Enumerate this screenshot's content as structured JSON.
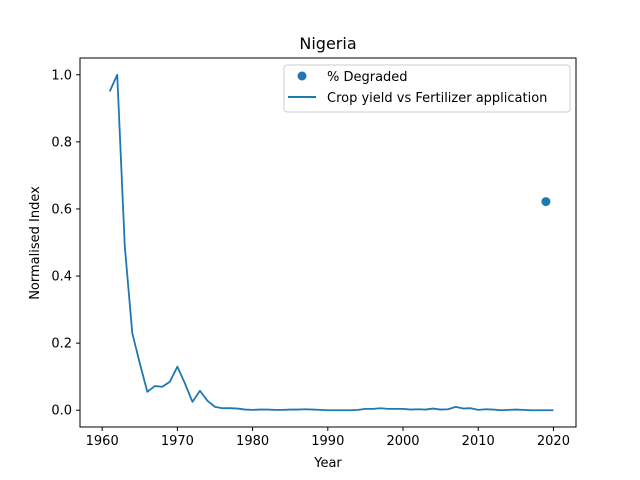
{
  "chart_data": {
    "type": "line",
    "title": "Nigeria",
    "xlabel": "Year",
    "ylabel": "Normalised Index",
    "xlim": [
      1957.05,
      2023.0
    ],
    "ylim": [
      -0.05,
      1.05
    ],
    "x_ticks": [
      1960,
      1970,
      1980,
      1990,
      2000,
      2010,
      2020
    ],
    "y_ticks": [
      0.0,
      0.2,
      0.4,
      0.6,
      0.8,
      1.0
    ],
    "x_tick_labels": [
      "1960",
      "1970",
      "1980",
      "1990",
      "2000",
      "2010",
      "2020"
    ],
    "y_tick_labels": [
      "0.0",
      "0.2",
      "0.4",
      "0.6",
      "0.8",
      "1.0"
    ],
    "legend_position": "top-right",
    "grid": false,
    "series": [
      {
        "name": "% Degraded",
        "kind": "scatter",
        "color": "#1f77b4",
        "points": [
          [
            2019,
            0.622
          ]
        ]
      },
      {
        "name": "Crop yield vs Fertilizer application",
        "kind": "line",
        "color": "#1f77b4",
        "points": [
          [
            1961,
            0.95
          ],
          [
            1962,
            1.0
          ],
          [
            1963,
            0.49
          ],
          [
            1964,
            0.23
          ],
          [
            1965,
            0.14
          ],
          [
            1966,
            0.055
          ],
          [
            1967,
            0.072
          ],
          [
            1968,
            0.07
          ],
          [
            1969,
            0.085
          ],
          [
            1970,
            0.13
          ],
          [
            1971,
            0.08
          ],
          [
            1972,
            0.025
          ],
          [
            1973,
            0.058
          ],
          [
            1974,
            0.028
          ],
          [
            1975,
            0.01
          ],
          [
            1976,
            0.006
          ],
          [
            1977,
            0.006
          ],
          [
            1978,
            0.005
          ],
          [
            1979,
            0.002
          ],
          [
            1980,
            0.001
          ],
          [
            1981,
            0.002
          ],
          [
            1982,
            0.002
          ],
          [
            1983,
            0.001
          ],
          [
            1984,
            0.001
          ],
          [
            1985,
            0.002
          ],
          [
            1986,
            0.002
          ],
          [
            1987,
            0.003
          ],
          [
            1988,
            0.002
          ],
          [
            1989,
            0.001
          ],
          [
            1990,
            0.0
          ],
          [
            1991,
            0.0
          ],
          [
            1992,
            0.0
          ],
          [
            1993,
            0.0
          ],
          [
            1994,
            0.001
          ],
          [
            1995,
            0.004
          ],
          [
            1996,
            0.004
          ],
          [
            1997,
            0.006
          ],
          [
            1998,
            0.004
          ],
          [
            1999,
            0.004
          ],
          [
            2000,
            0.004
          ],
          [
            2001,
            0.002
          ],
          [
            2002,
            0.003
          ],
          [
            2003,
            0.002
          ],
          [
            2004,
            0.005
          ],
          [
            2005,
            0.002
          ],
          [
            2006,
            0.003
          ],
          [
            2007,
            0.01
          ],
          [
            2008,
            0.005
          ],
          [
            2009,
            0.006
          ],
          [
            2010,
            0.001
          ],
          [
            2011,
            0.003
          ],
          [
            2012,
            0.002
          ],
          [
            2013,
            0.0
          ],
          [
            2014,
            0.001
          ],
          [
            2015,
            0.002
          ],
          [
            2016,
            0.001
          ],
          [
            2017,
            0.0
          ],
          [
            2018,
            0.0
          ],
          [
            2019,
            0.0
          ],
          [
            2020,
            0.0
          ]
        ]
      }
    ]
  }
}
